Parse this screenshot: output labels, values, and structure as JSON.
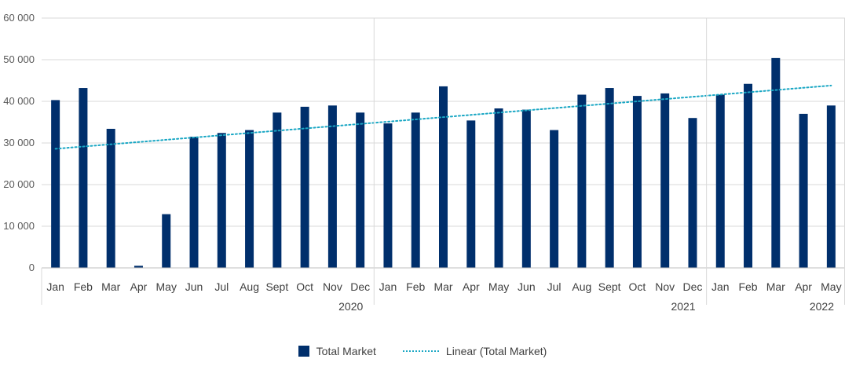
{
  "chart_data": {
    "type": "bar",
    "title": "",
    "xlabel": "",
    "ylabel": "",
    "ylim": [
      0,
      60000
    ],
    "yticks": [
      0,
      10000,
      20000,
      30000,
      40000,
      50000,
      60000
    ],
    "ytick_labels": [
      "0",
      "10 000",
      "20 000",
      "30 000",
      "40 000",
      "50 000",
      "60 000"
    ],
    "grid": true,
    "legend_position": "bottom",
    "categories": [
      "Jan",
      "Feb",
      "Mar",
      "Apr",
      "May",
      "Jun",
      "Jul",
      "Aug",
      "Sept",
      "Oct",
      "Nov",
      "Dec",
      "Jan",
      "Feb",
      "Mar",
      "Apr",
      "May",
      "Jun",
      "Jul",
      "Aug",
      "Sept",
      "Oct",
      "Nov",
      "Dec",
      "Jan",
      "Feb",
      "Mar",
      "Apr",
      "May"
    ],
    "groups": [
      {
        "label": "2020",
        "count": 12
      },
      {
        "label": "2021",
        "count": 12
      },
      {
        "label": "2022",
        "count": 5
      }
    ],
    "series": [
      {
        "name": "Total Market",
        "type": "bar",
        "color": "#002f6c",
        "values": [
          40300,
          43200,
          33400,
          500,
          12900,
          31500,
          32400,
          33100,
          37300,
          38700,
          39000,
          37300,
          34700,
          37300,
          43600,
          35400,
          38300,
          38000,
          33100,
          41600,
          43200,
          41300,
          41900,
          36000,
          41600,
          44200,
          50400,
          37000,
          39000
        ]
      },
      {
        "name": "Linear (Total Market)",
        "type": "trendline",
        "color": "#1aa7c4",
        "start": 28600,
        "end": 43800
      }
    ]
  }
}
